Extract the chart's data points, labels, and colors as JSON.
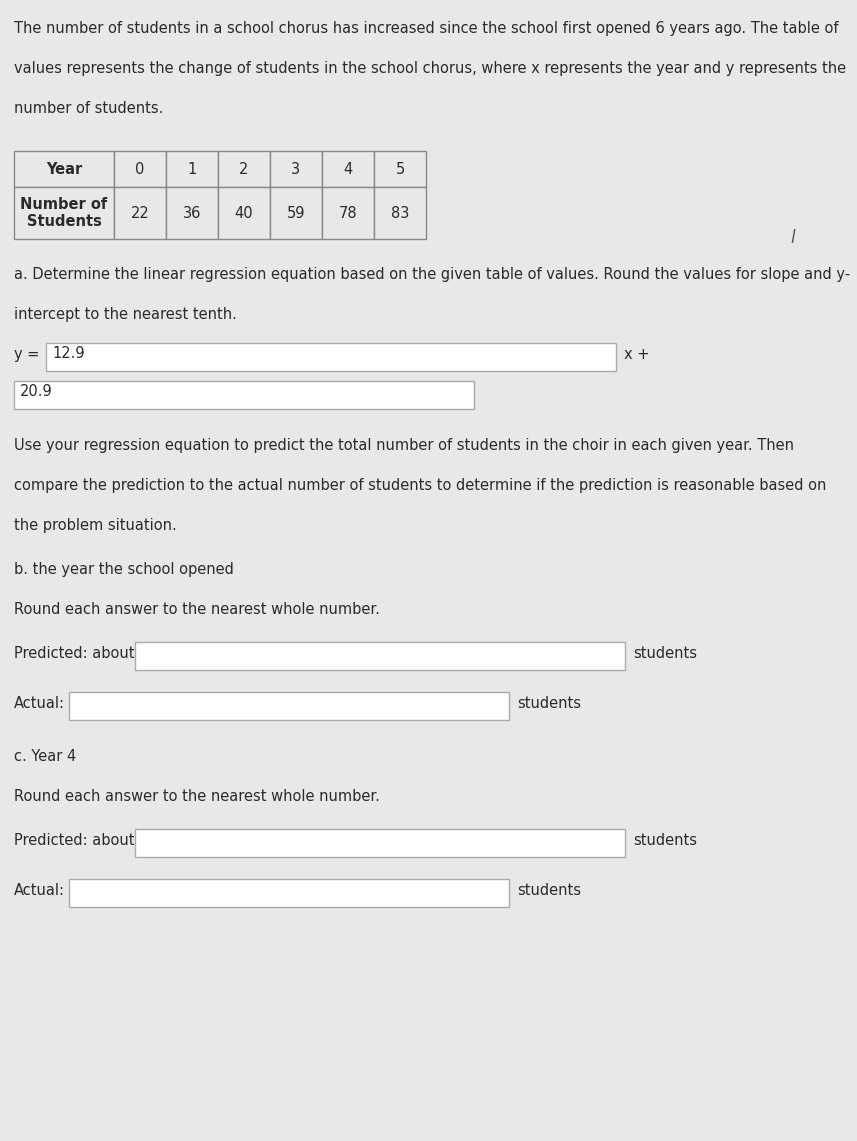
{
  "background_color": "#e8e8e8",
  "text_color": "#2a2a2a",
  "table_years": [
    "Year",
    "0",
    "1",
    "2",
    "3",
    "4",
    "5"
  ],
  "table_students_label": [
    "Number of\nStudents",
    "22",
    "36",
    "40",
    "59",
    "78",
    "83"
  ],
  "equation_prefix": "y = ",
  "equation_slope_box": "12.9",
  "equation_middle": "x +",
  "equation_intercept_box": "20.9",
  "students_label": "students",
  "section_b_text": "b. the year the school opened",
  "section_c_text": "c. Year 4",
  "round_text": "Round each answer to the nearest whole number.",
  "predicted_label": "Predicted: about",
  "actual_label": "Actual:",
  "font_size_body": 10.5,
  "font_size_table": 10.5,
  "box_fill": "#ffffff",
  "box_edge": "#aaaaaa",
  "table_border": "#888888",
  "italic_char": "l"
}
